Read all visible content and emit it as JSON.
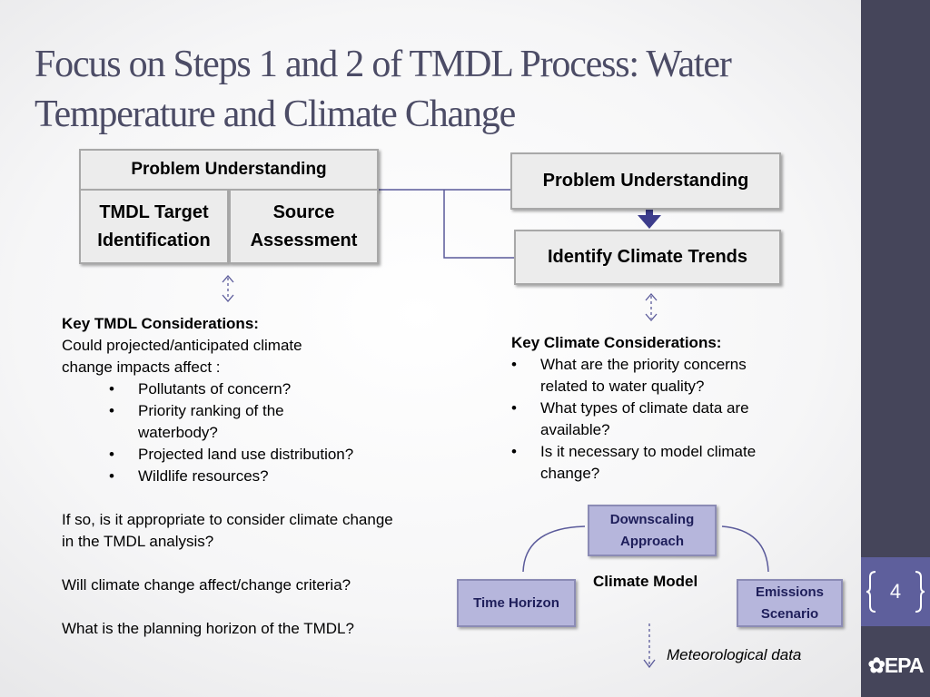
{
  "title": "Focus on Steps 1 and 2 of TMDL Process: Water Temperature and Climate Change",
  "left_diagram": {
    "header": "Problem Understanding",
    "box1": "TMDL Target Identification",
    "box2": "Source Assessment"
  },
  "right_diagram": {
    "top": "Problem Understanding",
    "bottom": "Identify Climate Trends"
  },
  "tmdl_considerations": {
    "heading": "Key TMDL Considerations:",
    "intro": "Could projected/anticipated climate change impacts affect :",
    "bullets": [
      "Pollutants of concern?",
      "Priority ranking of the waterbody?",
      "Projected land use distribution?",
      "Wildlife resources?"
    ],
    "q1": "If so, is it appropriate to consider climate change in the TMDL analysis?",
    "q2": "Will climate change affect/change criteria?",
    "q3": "What is the planning horizon of the TMDL?"
  },
  "climate_considerations": {
    "heading": "Key Climate Considerations:",
    "bullets": [
      "What are the priority concerns related to water quality?",
      "What types of climate data are available?",
      "Is it necessary to model climate change?"
    ]
  },
  "climate_model": {
    "downscaling": "Downscaling Approach",
    "time_horizon": "Time Horizon",
    "emissions": "Emissions Scenario",
    "label": "Climate Model",
    "output": "Meteorological data"
  },
  "page_number": "4",
  "logo": "EPA",
  "colors": {
    "sidebar": "#45455a",
    "page_box": "#5e5f9c",
    "title": "#4c4c66",
    "purple_box": "#b6b6dc",
    "connector": "#5a5a9a"
  }
}
